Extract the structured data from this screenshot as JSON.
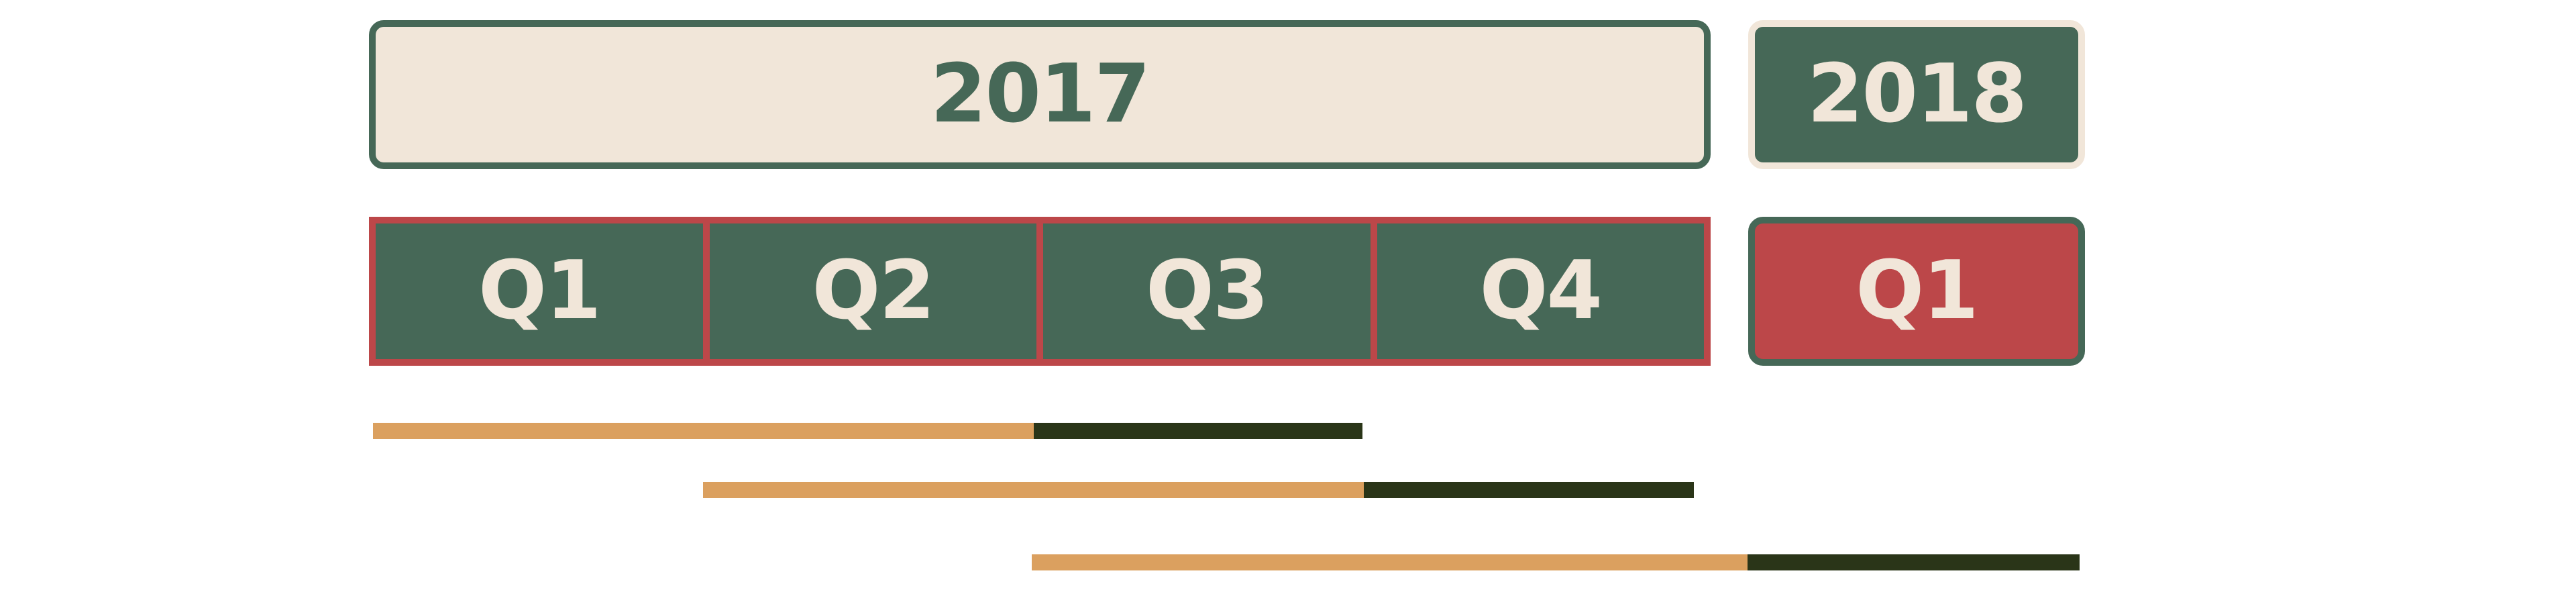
{
  "timeline": {
    "years": [
      {
        "label": "2017"
      },
      {
        "label": "2018"
      }
    ],
    "quarters_2017": [
      "Q1",
      "Q2",
      "Q3",
      "Q4"
    ],
    "quarters_2018": [
      "Q1"
    ],
    "colors": {
      "green": "#466857",
      "cream": "#f1e6d9",
      "red": "#bc4749",
      "orange": "#dba05f",
      "dark": "#2a3518"
    },
    "bars": [
      {
        "name": "bar-1"
      },
      {
        "name": "bar-2"
      },
      {
        "name": "bar-3"
      }
    ]
  }
}
